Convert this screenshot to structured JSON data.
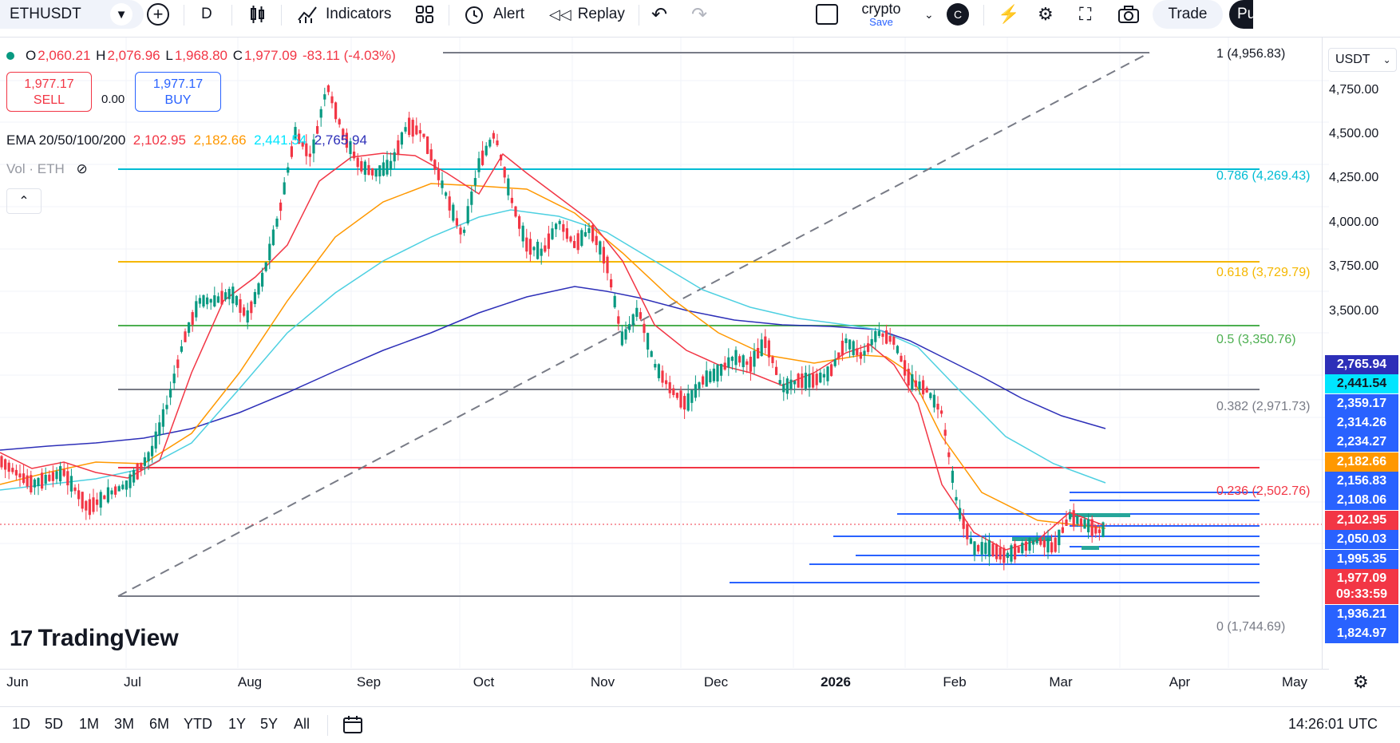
{
  "toolbar": {
    "symbol": "ETHUSDT",
    "interval": "D",
    "indicators_label": "Indicators",
    "alert_label": "Alert",
    "replay_label": "Replay",
    "layout_name": "crypto",
    "layout_save": "Save",
    "avatar_letter": "C",
    "trade_label": "Trade",
    "publish_label": "Pu"
  },
  "legend": {
    "open_label": "O",
    "open": "2,060.21",
    "high_label": "H",
    "high": "2,076.96",
    "low_label": "L",
    "low": "1,968.80",
    "close_label": "C",
    "close": "1,977.09",
    "change": "-83.11 (-4.03%)",
    "ema_label": "EMA 20/50/100/200",
    "ema20": "2,102.95",
    "ema50": "2,182.66",
    "ema100": "2,441.54",
    "ema200": "2,765.94",
    "vol_label": "Vol · ETH"
  },
  "trade": {
    "sell_price": "1,977.17",
    "sell_label": "SELL",
    "buy_price": "1,977.17",
    "buy_label": "BUY",
    "spread": "0.00"
  },
  "currency": "USDT",
  "price_axis": [
    "4,750.00",
    "4,500.00",
    "4,250.00",
    "4,000.00",
    "3,750.00",
    "3,500.00"
  ],
  "fib": [
    {
      "label": "1 (4,956.83)",
      "color": "#787b86"
    },
    {
      "label": "0.786 (4,269.43)",
      "color": "#00bcd4"
    },
    {
      "label": "0.618 (3,729.79)",
      "color": "#f5b700"
    },
    {
      "label": "0.5 (3,350.76)",
      "color": "#4caf50"
    },
    {
      "label": "0.382 (2,971.73)",
      "color": "#787b86"
    },
    {
      "label": "0.236 (2,502.76)",
      "color": "#f23645"
    },
    {
      "label": "0 (1,744.69)",
      "color": "#787b86"
    }
  ],
  "price_tags": [
    {
      "value": "2,765.94",
      "bg": "#2d2fb8",
      "fg": "#ffffff"
    },
    {
      "value": "2,441.54",
      "bg": "#00e5ff",
      "fg": "#131722"
    },
    {
      "value": "2,359.17",
      "bg": "#2962ff",
      "fg": "#ffffff"
    },
    {
      "value": "2,314.26",
      "bg": "#2962ff",
      "fg": "#ffffff"
    },
    {
      "value": "2,234.27",
      "bg": "#2962ff",
      "fg": "#ffffff"
    },
    {
      "value": "2,182.66",
      "bg": "#ff9800",
      "fg": "#ffffff"
    },
    {
      "value": "2,156.83",
      "bg": "#2962ff",
      "fg": "#ffffff"
    },
    {
      "value": "2,108.06",
      "bg": "#2962ff",
      "fg": "#ffffff"
    },
    {
      "value": "2,102.95",
      "bg": "#f23645",
      "fg": "#ffffff"
    },
    {
      "value": "2,050.03",
      "bg": "#2962ff",
      "fg": "#ffffff"
    },
    {
      "value": "1,995.35",
      "bg": "#2962ff",
      "fg": "#ffffff"
    },
    {
      "value": "1,977.09",
      "bg": "#f23645",
      "fg": "#ffffff"
    },
    {
      "value": "09:33:59",
      "bg": "#f23645",
      "fg": "#ffffff"
    },
    {
      "value": "1,936.21",
      "bg": "#2962ff",
      "fg": "#ffffff"
    },
    {
      "value": "1,824.97",
      "bg": "#2962ff",
      "fg": "#ffffff"
    }
  ],
  "x_axis": [
    "Jun",
    "Jul",
    "Aug",
    "Sep",
    "Oct",
    "Nov",
    "Dec",
    "2026",
    "Feb",
    "Mar",
    "Apr",
    "May"
  ],
  "ranges": [
    "1D",
    "5D",
    "1M",
    "3M",
    "6M",
    "YTD",
    "1Y",
    "5Y",
    "All"
  ],
  "clock": "14:26:01 UTC",
  "watermark": "TradingView",
  "chart_data": {
    "type": "candlestick",
    "title": "",
    "x": [
      "Jun",
      "Jul",
      "Aug",
      "Sep",
      "Oct",
      "Nov",
      "Dec",
      "2026",
      "Feb",
      "Mar",
      "Apr",
      "May"
    ],
    "ylim": [
      1744.69,
      4956.83
    ],
    "series": [
      {
        "name": "EMA 20",
        "color": "#f23645",
        "last": 2102.95
      },
      {
        "name": "EMA 50",
        "color": "#ff9800",
        "last": 2182.66
      },
      {
        "name": "EMA 100",
        "color": "#00e5ff",
        "last": 2441.54
      },
      {
        "name": "EMA 200",
        "color": "#2d2fb8",
        "last": 2765.94
      }
    ],
    "last_close": 1977.09
  }
}
